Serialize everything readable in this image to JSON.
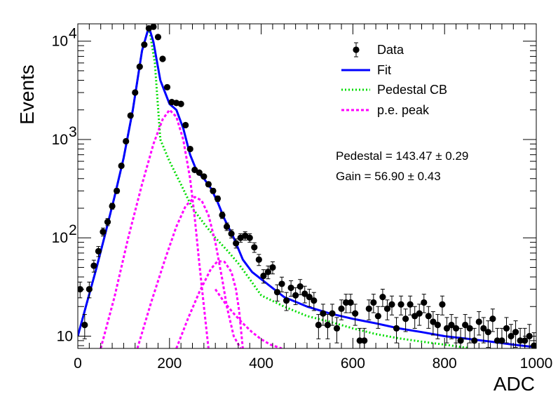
{
  "chart_data": {
    "type": "scatter",
    "xlabel": "ADC",
    "ylabel": "Events",
    "xlim": [
      0,
      1000
    ],
    "ylim": [
      7.5,
      15000
    ],
    "yscale": "log",
    "x_ticks": [
      {
        "value": 0,
        "label": "0"
      },
      {
        "value": 200,
        "label": "200"
      },
      {
        "value": 400,
        "label": "400"
      },
      {
        "value": 600,
        "label": "600"
      },
      {
        "value": 800,
        "label": "800"
      },
      {
        "value": 1000,
        "label": "1000"
      }
    ],
    "y_ticks": [
      {
        "value": 10,
        "base": "10",
        "exp": ""
      },
      {
        "value": 100,
        "base": "10",
        "exp": "2"
      },
      {
        "value": 1000,
        "base": "10",
        "exp": "3"
      },
      {
        "value": 10000,
        "base": "10",
        "exp": "4"
      }
    ],
    "legend_position": "top-right",
    "legend": [
      {
        "key": "data",
        "label": "Data",
        "color": "#000000",
        "style": "marker"
      },
      {
        "key": "fit",
        "label": "Fit",
        "color": "#0000ff",
        "style": "solid"
      },
      {
        "key": "pedestal",
        "label": "Pedestal CB",
        "color": "#00dd00",
        "style": "dotted"
      },
      {
        "key": "pe",
        "label": "p.e. peak",
        "color": "#ff00ff",
        "style": "dashed"
      }
    ],
    "annotations": [
      "Pedestal = 143.47 ± 0.29",
      "Gain = 56.90 ± 0.43"
    ],
    "series": [
      {
        "key": "data",
        "name": "Data",
        "color": "#000000",
        "points": [
          [
            5,
            30
          ],
          [
            15,
            13
          ],
          [
            25,
            30
          ],
          [
            35,
            52
          ],
          [
            45,
            73
          ],
          [
            55,
            115
          ],
          [
            65,
            145
          ],
          [
            75,
            210
          ],
          [
            85,
            300
          ],
          [
            95,
            540
          ],
          [
            105,
            960
          ],
          [
            115,
            1750
          ],
          [
            125,
            3000
          ],
          [
            135,
            5500
          ],
          [
            145,
            9200
          ],
          [
            155,
            13500
          ],
          [
            165,
            14000
          ],
          [
            175,
            11000
          ],
          [
            185,
            6600
          ],
          [
            195,
            3400
          ],
          [
            205,
            2400
          ],
          [
            215,
            2350
          ],
          [
            225,
            2300
          ],
          [
            235,
            1400
          ],
          [
            245,
            800
          ],
          [
            255,
            490
          ],
          [
            265,
            460
          ],
          [
            275,
            420
          ],
          [
            285,
            350
          ],
          [
            295,
            300
          ],
          [
            305,
            250
          ],
          [
            315,
            170
          ],
          [
            325,
            130
          ],
          [
            335,
            110
          ],
          [
            345,
            88
          ],
          [
            355,
            100
          ],
          [
            365,
            105
          ],
          [
            375,
            100
          ],
          [
            385,
            80
          ],
          [
            395,
            60
          ],
          [
            405,
            41
          ],
          [
            415,
            45
          ],
          [
            425,
            50
          ],
          [
            435,
            28
          ],
          [
            445,
            34
          ],
          [
            455,
            23
          ],
          [
            465,
            31
          ],
          [
            475,
            26
          ],
          [
            485,
            32
          ],
          [
            495,
            27
          ],
          [
            505,
            25
          ],
          [
            515,
            23
          ],
          [
            525,
            13
          ],
          [
            535,
            17
          ],
          [
            545,
            13
          ],
          [
            555,
            17
          ],
          [
            565,
            12
          ],
          [
            575,
            19
          ],
          [
            585,
            22
          ],
          [
            595,
            22
          ],
          [
            605,
            17
          ],
          [
            615,
            9
          ],
          [
            625,
            9
          ],
          [
            635,
            19
          ],
          [
            645,
            22
          ],
          [
            655,
            16
          ],
          [
            665,
            25
          ],
          [
            675,
            19
          ],
          [
            685,
            21
          ],
          [
            695,
            12
          ],
          [
            705,
            21
          ],
          [
            715,
            15
          ],
          [
            725,
            21
          ],
          [
            735,
            16
          ],
          [
            745,
            17
          ],
          [
            755,
            22
          ],
          [
            765,
            16
          ],
          [
            775,
            14
          ],
          [
            785,
            13
          ],
          [
            795,
            21
          ],
          [
            805,
            12
          ],
          [
            815,
            13
          ],
          [
            825,
            12
          ],
          [
            835,
            9
          ],
          [
            845,
            13
          ],
          [
            855,
            12
          ],
          [
            865,
            9
          ],
          [
            875,
            14
          ],
          [
            885,
            12
          ],
          [
            895,
            11
          ],
          [
            905,
            15
          ],
          [
            915,
            9
          ],
          [
            925,
            9
          ],
          [
            935,
            12
          ],
          [
            945,
            10
          ],
          [
            955,
            11
          ],
          [
            965,
            9
          ],
          [
            975,
            9
          ],
          [
            985,
            10
          ],
          [
            995,
            8
          ]
        ]
      },
      {
        "key": "fit",
        "name": "Fit",
        "color": "#0000ff",
        "points": [
          [
            0,
            10
          ],
          [
            20,
            22
          ],
          [
            40,
            48
          ],
          [
            60,
            110
          ],
          [
            80,
            260
          ],
          [
            100,
            650
          ],
          [
            120,
            2000
          ],
          [
            140,
            8000
          ],
          [
            155,
            14000
          ],
          [
            165,
            9800
          ],
          [
            180,
            4000
          ],
          [
            200,
            2300
          ],
          [
            215,
            2000
          ],
          [
            230,
            1300
          ],
          [
            245,
            700
          ],
          [
            260,
            470
          ],
          [
            275,
            400
          ],
          [
            290,
            320
          ],
          [
            305,
            230
          ],
          [
            320,
            155
          ],
          [
            340,
            100
          ],
          [
            360,
            60
          ],
          [
            380,
            45
          ],
          [
            400,
            38
          ],
          [
            450,
            25
          ],
          [
            500,
            20
          ],
          [
            550,
            17
          ],
          [
            600,
            15
          ],
          [
            650,
            13.5
          ],
          [
            700,
            12
          ],
          [
            750,
            11
          ],
          [
            800,
            10
          ],
          [
            850,
            9.4
          ],
          [
            900,
            8.8
          ],
          [
            950,
            8.2
          ],
          [
            1000,
            7.7
          ]
        ]
      },
      {
        "key": "pedestal",
        "name": "Pedestal CB",
        "color": "#00dd00",
        "points": [
          [
            0,
            10
          ],
          [
            20,
            22
          ],
          [
            40,
            48
          ],
          [
            60,
            110
          ],
          [
            80,
            260
          ],
          [
            100,
            650
          ],
          [
            120,
            2000
          ],
          [
            140,
            8000
          ],
          [
            155,
            14000
          ],
          [
            168,
            6000
          ],
          [
            180,
            1000
          ],
          [
            200,
            600
          ],
          [
            225,
            350
          ],
          [
            250,
            200
          ],
          [
            275,
            140
          ],
          [
            300,
            100
          ],
          [
            325,
            75
          ],
          [
            350,
            55
          ],
          [
            375,
            38
          ],
          [
            400,
            26
          ],
          [
            450,
            20
          ],
          [
            500,
            16
          ],
          [
            550,
            14
          ],
          [
            600,
            12
          ],
          [
            650,
            10.5
          ],
          [
            700,
            9.5
          ],
          [
            750,
            8.8
          ],
          [
            800,
            8.2
          ],
          [
            850,
            7.6
          ]
        ]
      },
      {
        "key": "pe1",
        "name": "p.e. peak",
        "color": "#ff00ff",
        "points": [
          [
            50,
            7.5
          ],
          [
            80,
            25
          ],
          [
            110,
            100
          ],
          [
            140,
            350
          ],
          [
            165,
            900
          ],
          [
            185,
            1600
          ],
          [
            200,
            2000
          ],
          [
            215,
            1700
          ],
          [
            230,
            1000
          ],
          [
            245,
            400
          ],
          [
            255,
            160
          ],
          [
            265,
            55
          ],
          [
            275,
            20
          ],
          [
            285,
            7.5
          ]
        ]
      },
      {
        "key": "pe2",
        "name": "p.e. peak",
        "color": "#ff00ff",
        "points": [
          [
            130,
            7.5
          ],
          [
            160,
            22
          ],
          [
            190,
            60
          ],
          [
            215,
            130
          ],
          [
            235,
            210
          ],
          [
            255,
            260
          ],
          [
            270,
            240
          ],
          [
            285,
            170
          ],
          [
            300,
            90
          ],
          [
            315,
            38
          ],
          [
            325,
            20
          ],
          [
            340,
            10
          ],
          [
            355,
            7.5
          ]
        ]
      },
      {
        "key": "pe3",
        "name": "p.e. peak",
        "color": "#ff00ff",
        "points": [
          [
            215,
            7.5
          ],
          [
            240,
            15
          ],
          [
            265,
            28
          ],
          [
            290,
            48
          ],
          [
            305,
            58
          ],
          [
            320,
            57
          ],
          [
            335,
            45
          ],
          [
            345,
            30
          ],
          [
            352,
            18
          ],
          [
            360,
            7.5
          ]
        ]
      },
      {
        "key": "pe_tail",
        "name": "p.e. peak",
        "color": "#ff00ff",
        "points": [
          [
            300,
            30
          ],
          [
            320,
            22
          ],
          [
            340,
            17
          ],
          [
            360,
            13.5
          ],
          [
            380,
            11
          ],
          [
            400,
            9.3
          ],
          [
            420,
            8.2
          ],
          [
            445,
            7.5
          ]
        ]
      }
    ]
  }
}
